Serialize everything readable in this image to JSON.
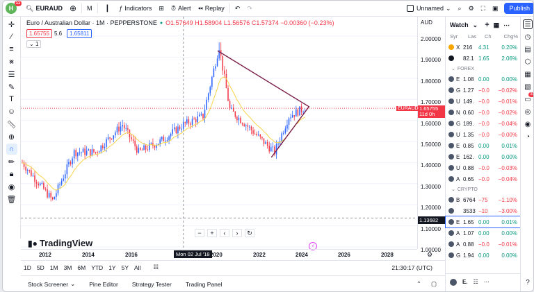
{
  "app": {
    "notif_count": "11"
  },
  "toolbar": {
    "symbol": "EURAUD",
    "interval": "M",
    "indicators": "Indicators",
    "alert": "Alert",
    "replay": "Replay",
    "layout_name": "Unnamed",
    "publish": "Publish"
  },
  "legend": {
    "title": "Euro / Australian Dollar · 1M · PEPPERSTONE",
    "o": "O1.57649",
    "h": "H1.58904",
    "l": "L1.56576",
    "c": "C1.57374",
    "chg": "−0.00360 (−0.23%)",
    "sell": "1.65755",
    "spread": "5.6",
    "buy": "1.65811",
    "indicator_count": "1"
  },
  "axis": {
    "currency": "AUD",
    "y_ticks": [
      "2.00000",
      "1.90000",
      "1.80000",
      "1.70000",
      "1.60000",
      "1.50000",
      "1.40000",
      "1.30000",
      "1.20000",
      "1.10000",
      "1.00000"
    ],
    "current_symbol": "EURAUD",
    "current_price": "1.65755",
    "countdown": "11d 0h",
    "crosshair_price": "1.13682",
    "x_ticks": [
      "2012",
      "2014",
      "2016",
      "2020",
      "2022",
      "2024",
      "2026",
      "2028"
    ],
    "crosshair_date": "Mon 02 Jul '18"
  },
  "chart_data": {
    "type": "candlestick",
    "symbol": "EURAUD",
    "interval": "1M",
    "ylim": [
      1.0,
      2.0
    ],
    "x_range": [
      "2011",
      "2029"
    ],
    "annotations": [
      "symmetrical triangle drawing from ~2019 high to ~2024"
    ],
    "approx_path": [
      {
        "x": "2011-01",
        "y": 1.4
      },
      {
        "x": "2012-06",
        "y": 1.22
      },
      {
        "x": "2013-06",
        "y": 1.45
      },
      {
        "x": "2014-06",
        "y": 1.45
      },
      {
        "x": "2015-09",
        "y": 1.58
      },
      {
        "x": "2016-06",
        "y": 1.45
      },
      {
        "x": "2017-06",
        "y": 1.5
      },
      {
        "x": "2018-07",
        "y": 1.58
      },
      {
        "x": "2019-06",
        "y": 1.62
      },
      {
        "x": "2020-03",
        "y": 1.95
      },
      {
        "x": "2020-09",
        "y": 1.65
      },
      {
        "x": "2021-06",
        "y": 1.58
      },
      {
        "x": "2022-06",
        "y": 1.48
      },
      {
        "x": "2022-10",
        "y": 1.45
      },
      {
        "x": "2023-06",
        "y": 1.62
      },
      {
        "x": "2024-03",
        "y": 1.66
      }
    ]
  },
  "bottom": {
    "ranges": [
      "1D",
      "5D",
      "1M",
      "3M",
      "6M",
      "YTD",
      "1Y",
      "5Y",
      "All"
    ],
    "clock": "21:30:17 (UTC)",
    "tabs": [
      "Stock Screener",
      "Pine Editor",
      "Strategy Tester",
      "Trading Panel"
    ]
  },
  "brand": "TradingView",
  "watchlist": {
    "title": "Watch",
    "cols": [
      "Syr",
      "Las",
      "Ch",
      "Chg%"
    ],
    "rows1": [
      {
        "sym": "X",
        "last": "216",
        "chg": "4.31",
        "pct": "0.20%",
        "dir": "pos",
        "color": "#f7a600"
      },
      {
        "sym": "",
        "last": "82.1",
        "chg": "1.65",
        "pct": "2.06%",
        "dir": "pos",
        "color": "#131722"
      }
    ],
    "forex_label": "FOREX",
    "forex": [
      {
        "sym": "E",
        "last": "1.08",
        "chg": "0.00",
        "pct": "0.00%",
        "dir": "pos"
      },
      {
        "sym": "G",
        "last": "1.27",
        "chg": "−0.0",
        "pct": "−0.02%",
        "dir": "neg"
      },
      {
        "sym": "U",
        "last": "149.",
        "chg": "−0.0",
        "pct": "−0.01%",
        "dir": "neg"
      },
      {
        "sym": "N",
        "last": "0.60",
        "chg": "−0.0",
        "pct": "−0.02%",
        "dir": "neg"
      },
      {
        "sym": "G",
        "last": "189.",
        "chg": "−0.0",
        "pct": "−0.04%",
        "dir": "neg"
      },
      {
        "sym": "U",
        "last": "1.35",
        "chg": "−0.0",
        "pct": "−0.00%",
        "dir": "neg"
      },
      {
        "sym": "E",
        "last": "0.85",
        "chg": "0.00",
        "pct": "0.01%",
        "dir": "pos"
      },
      {
        "sym": "E",
        "last": "162.",
        "chg": "0.00",
        "pct": "0.00%",
        "dir": "pos"
      },
      {
        "sym": "U",
        "last": "0.88",
        "chg": "−0.0",
        "pct": "−0.03%",
        "dir": "neg"
      },
      {
        "sym": "A",
        "last": "0.65",
        "chg": "−0.0",
        "pct": "−0.04%",
        "dir": "neg"
      }
    ],
    "crypto_label": "CRYPTO",
    "crypto": [
      {
        "sym": "B",
        "last": "6764",
        "chg": "−75",
        "pct": "−1.10%",
        "dir": "neg"
      },
      {
        "sym": "",
        "last": "3533",
        "chg": "−10",
        "pct": "−3.00%",
        "dir": "neg"
      },
      {
        "sym": "E",
        "last": "1.65",
        "chg": "0.00",
        "pct": "0.01%",
        "dir": "pos"
      },
      {
        "sym": "A",
        "last": "1.07",
        "chg": "0.00",
        "pct": "0.00%",
        "dir": "pos"
      },
      {
        "sym": "A",
        "last": "0.88",
        "chg": "−0.0",
        "pct": "−0.01%",
        "dir": "neg"
      },
      {
        "sym": "G",
        "last": "1.94",
        "chg": "0.00",
        "pct": "0.00%",
        "dir": "pos"
      }
    ],
    "footer_symbol": "E."
  },
  "rightrail": {
    "badge": "31"
  }
}
